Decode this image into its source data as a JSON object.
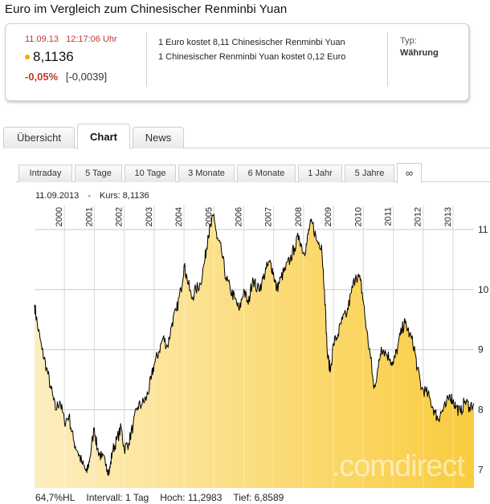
{
  "title": "Euro im Vergleich zum Chinesischer Renminbi Yuan",
  "quote": {
    "date": "11.09.13",
    "time": "12:17:06 Uhr",
    "price": "8,1136",
    "change_pct": "-0,05%",
    "change_abs": "[-0,0039]",
    "line1": "1 Euro kostet 8,11 Chinesischer Renminbi Yuan",
    "line2": "1 Chinesischer Renminbi Yuan kostet 0,12 Euro",
    "type_label": "Typ:",
    "type_value": "Währung",
    "dot_color": "#f2a900",
    "negative_color": "#c0392b"
  },
  "tabs": [
    {
      "label": "Übersicht",
      "active": false
    },
    {
      "label": "Chart",
      "active": true
    },
    {
      "label": "News",
      "active": false
    }
  ],
  "ranges": [
    {
      "label": "Intraday",
      "active": false
    },
    {
      "label": "5 Tage",
      "active": false
    },
    {
      "label": "10 Tage",
      "active": false
    },
    {
      "label": "3 Monate",
      "active": false
    },
    {
      "label": "6 Monate",
      "active": false
    },
    {
      "label": "1 Jahr",
      "active": false
    },
    {
      "label": "5 Jahre",
      "active": false
    },
    {
      "label": "∞",
      "active": true
    }
  ],
  "chart_header": {
    "date": "11.09.2013",
    "separator": "-",
    "kurs": "Kurs: 8,1136"
  },
  "chart_data": {
    "type": "area",
    "x_unit": "year",
    "years": [
      "2000",
      "2001",
      "2002",
      "2003",
      "2004",
      "2005",
      "2006",
      "2007",
      "2008",
      "2009",
      "2010",
      "2011",
      "2012",
      "2013"
    ],
    "y_ticks": [
      "7",
      "8",
      "9",
      "10",
      "11"
    ],
    "ylim": [
      6.7,
      11.4
    ],
    "xlim": [
      1999.0,
      2013.7
    ],
    "grid": true,
    "fill_colors": [
      "#fdeec0",
      "#f9cc3e"
    ],
    "line_color": "#000000",
    "watermark": ".comdirect",
    "points": [
      [
        1999.0,
        9.75
      ],
      [
        1999.1,
        9.4
      ],
      [
        1999.25,
        9.0
      ],
      [
        1999.4,
        8.7
      ],
      [
        1999.55,
        8.35
      ],
      [
        1999.7,
        8.0
      ],
      [
        1999.85,
        8.15
      ],
      [
        2000.0,
        7.8
      ],
      [
        2000.15,
        7.9
      ],
      [
        2000.3,
        7.5
      ],
      [
        2000.45,
        7.3
      ],
      [
        2000.6,
        7.1
      ],
      [
        2000.75,
        6.95
      ],
      [
        2000.85,
        7.2
      ],
      [
        2001.0,
        7.7
      ],
      [
        2001.1,
        7.35
      ],
      [
        2001.25,
        7.2
      ],
      [
        2001.4,
        7.1
      ],
      [
        2001.5,
        6.95
      ],
      [
        2001.6,
        7.3
      ],
      [
        2001.75,
        7.5
      ],
      [
        2001.9,
        7.7
      ],
      [
        2002.0,
        7.35
      ],
      [
        2002.15,
        7.45
      ],
      [
        2002.3,
        7.75
      ],
      [
        2002.45,
        8.05
      ],
      [
        2002.6,
        8.1
      ],
      [
        2002.75,
        8.2
      ],
      [
        2002.9,
        8.5
      ],
      [
        2003.0,
        8.75
      ],
      [
        2003.15,
        8.95
      ],
      [
        2003.3,
        9.2
      ],
      [
        2003.45,
        9.05
      ],
      [
        2003.6,
        9.45
      ],
      [
        2003.75,
        9.65
      ],
      [
        2003.9,
        10.0
      ],
      [
        2004.0,
        10.4
      ],
      [
        2004.1,
        10.2
      ],
      [
        2004.25,
        9.85
      ],
      [
        2004.4,
        10.0
      ],
      [
        2004.55,
        10.1
      ],
      [
        2004.7,
        10.5
      ],
      [
        2004.8,
        10.9
      ],
      [
        2004.9,
        11.05
      ],
      [
        2005.0,
        11.25
      ],
      [
        2005.1,
        10.85
      ],
      [
        2005.25,
        10.65
      ],
      [
        2005.4,
        10.2
      ],
      [
        2005.55,
        10.0
      ],
      [
        2005.7,
        9.85
      ],
      [
        2005.85,
        9.65
      ],
      [
        2006.0,
        10.0
      ],
      [
        2006.15,
        9.75
      ],
      [
        2006.3,
        10.2
      ],
      [
        2006.45,
        10.0
      ],
      [
        2006.6,
        10.1
      ],
      [
        2006.75,
        10.35
      ],
      [
        2006.9,
        10.45
      ],
      [
        2007.0,
        10.25
      ],
      [
        2007.1,
        10.0
      ],
      [
        2007.25,
        10.2
      ],
      [
        2007.4,
        10.35
      ],
      [
        2007.55,
        10.5
      ],
      [
        2007.7,
        10.7
      ],
      [
        2007.85,
        10.9
      ],
      [
        2008.0,
        10.6
      ],
      [
        2008.1,
        10.75
      ],
      [
        2008.2,
        11.05
      ],
      [
        2008.3,
        11.1
      ],
      [
        2008.45,
        10.8
      ],
      [
        2008.6,
        10.75
      ],
      [
        2008.7,
        10.0
      ],
      [
        2008.8,
        8.9
      ],
      [
        2008.9,
        8.65
      ],
      [
        2009.0,
        9.1
      ],
      [
        2009.15,
        9.25
      ],
      [
        2009.3,
        9.5
      ],
      [
        2009.45,
        9.6
      ],
      [
        2009.6,
        9.95
      ],
      [
        2009.75,
        10.25
      ],
      [
        2009.9,
        10.15
      ],
      [
        2010.0,
        9.8
      ],
      [
        2010.1,
        9.35
      ],
      [
        2010.25,
        8.85
      ],
      [
        2010.35,
        8.35
      ],
      [
        2010.5,
        8.7
      ],
      [
        2010.6,
        9.05
      ],
      [
        2010.75,
        8.95
      ],
      [
        2010.9,
        8.85
      ],
      [
        2011.0,
        8.75
      ],
      [
        2011.15,
        9.05
      ],
      [
        2011.3,
        9.35
      ],
      [
        2011.4,
        9.45
      ],
      [
        2011.55,
        9.25
      ],
      [
        2011.7,
        9.05
      ],
      [
        2011.8,
        8.7
      ],
      [
        2011.95,
        8.35
      ],
      [
        2012.1,
        8.3
      ],
      [
        2012.25,
        8.15
      ],
      [
        2012.4,
        7.95
      ],
      [
        2012.5,
        7.85
      ],
      [
        2012.6,
        7.95
      ],
      [
        2012.75,
        8.05
      ],
      [
        2012.9,
        8.25
      ],
      [
        2013.0,
        8.15
      ],
      [
        2013.1,
        8.05
      ],
      [
        2013.25,
        7.95
      ],
      [
        2013.4,
        8.15
      ],
      [
        2013.55,
        8.05
      ],
      [
        2013.7,
        8.11
      ]
    ]
  },
  "stats": {
    "hl": "64,7%HL",
    "interval": "Intervall: 1 Tag",
    "high": "Hoch: 11,2983",
    "low": "Tief: 6,8589"
  }
}
